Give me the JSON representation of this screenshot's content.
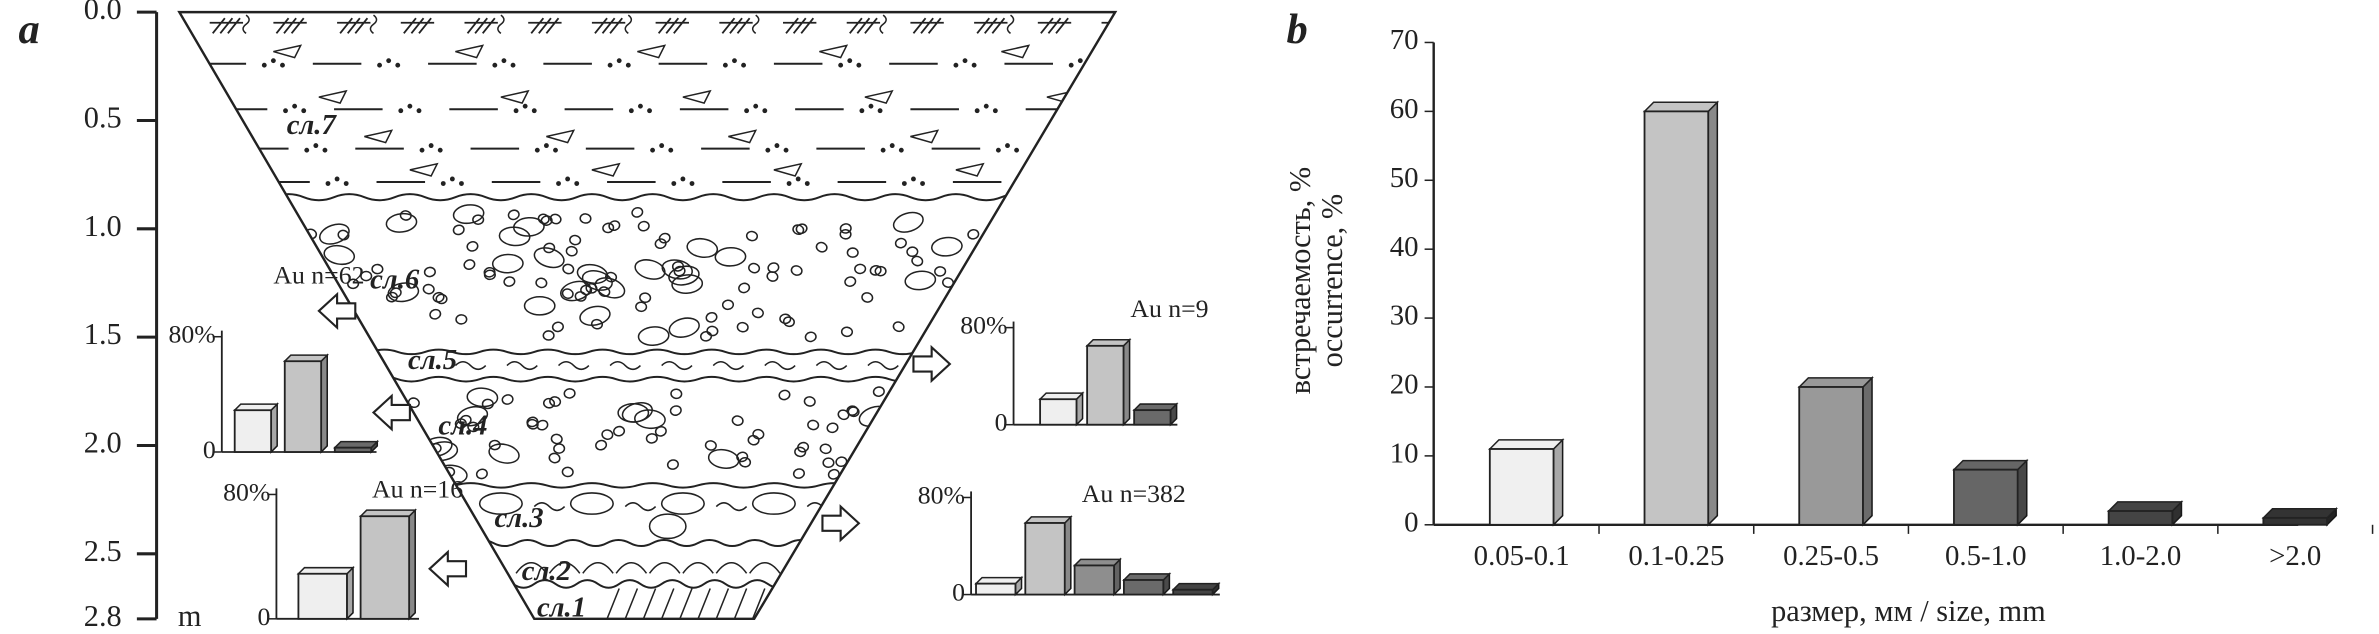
{
  "chart_data": [
    {
      "type": "section",
      "panel_label": "a",
      "ylabel": "m",
      "ylim": [
        0,
        2.8
      ],
      "yticks": [
        {
          "value": 0,
          "label": "0.0"
        },
        0.5,
        {
          "value": 1,
          "label": "1.0"
        },
        1.5,
        {
          "value": 2,
          "label": "2.0"
        },
        2.5,
        2.8
      ],
      "layers": [
        "сл.1",
        "сл.2",
        "сл.3",
        "сл.4",
        "сл.5",
        "сл.6",
        "сл.7"
      ]
    },
    {
      "type": "bar",
      "title": "Au n=62",
      "categories": [
        null,
        null,
        null
      ],
      "values": [
        29,
        63,
        3
      ],
      "colors": [
        "#efefef",
        "#c4c4c4",
        "#6a6a6a"
      ],
      "ylim": [
        0,
        80
      ],
      "yticks": [
        0,
        {
          "value": 80,
          "label": "80%"
        }
      ]
    },
    {
      "type": "bar",
      "title": "Au n=9",
      "categories": [
        null,
        null,
        null
      ],
      "values": [
        21,
        65,
        12
      ],
      "colors": [
        "#efefef",
        "#c4c4c4",
        "#6a6a6a"
      ],
      "ylim": [
        0,
        80
      ],
      "yticks": [
        0,
        {
          "value": 80,
          "label": "80%"
        }
      ]
    },
    {
      "type": "bar",
      "title": "Au n=16",
      "categories": [
        null,
        null
      ],
      "values": [
        29,
        66
      ],
      "colors": [
        "#efefef",
        "#c4c4c4"
      ],
      "ylim": [
        0,
        80
      ],
      "yticks": [
        0,
        {
          "value": 80,
          "label": "80%"
        }
      ]
    },
    {
      "type": "bar",
      "title": "Au n=382",
      "categories": [
        null,
        null,
        null,
        null,
        null
      ],
      "values": [
        9,
        59,
        24,
        12,
        4
      ],
      "colors": [
        "#efefef",
        "#c4c4c4",
        "#8e8e8e",
        "#6a6a6a",
        "#444444"
      ],
      "ylim": [
        0,
        80
      ],
      "yticks": [
        0,
        {
          "value": 80,
          "label": "80%"
        }
      ]
    },
    {
      "type": "bar",
      "panel_label": "b",
      "categories": [
        "0.05-0.1",
        "0.1-0.25",
        "0.25-0.5",
        "0.5-1.0",
        "1.0-2.0",
        ">2.0"
      ],
      "values": [
        11,
        60,
        20,
        8,
        2,
        1
      ],
      "colors": [
        "#f0f0f0",
        "#c4c4c4",
        "#999999",
        "#666666",
        "#444444",
        "#333333"
      ],
      "ylim": [
        0,
        70
      ],
      "yticks": [
        0,
        10,
        20,
        30,
        40,
        50,
        60,
        70
      ],
      "ylabel": [
        "встречаемость, %",
        "occurrence, %"
      ],
      "xlabel": "размер, мм / size, mm"
    }
  ]
}
